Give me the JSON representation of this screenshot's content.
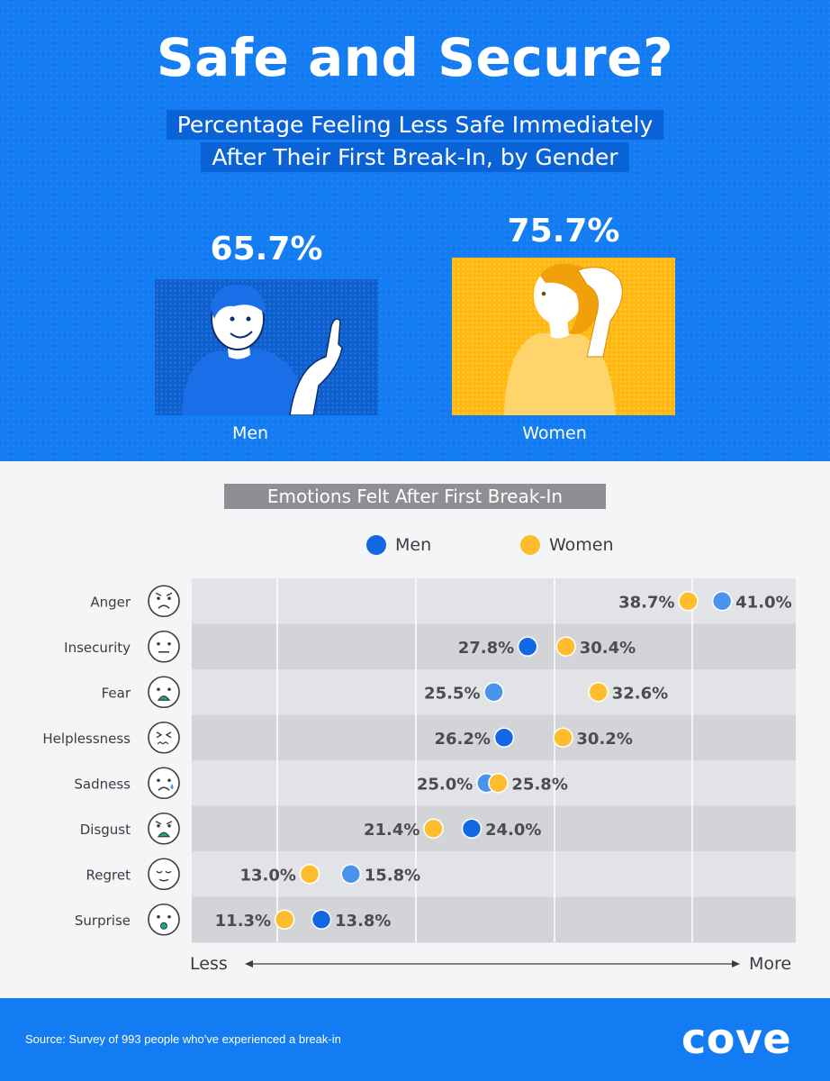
{
  "header": {
    "title": "Safe and Secure?",
    "subtitle_line1": "Percentage Feeling Less Safe Immediately",
    "subtitle_line2": "After Their First Break-In, by Gender"
  },
  "gender_stats": {
    "men": {
      "label": "Men",
      "value": "65.7%"
    },
    "women": {
      "label": "Women",
      "value": "75.7%"
    }
  },
  "colors": {
    "brand_blue": "#137cf2",
    "men_dark": "#1268e3",
    "men_light": "#4a93ec",
    "women": "#ffbd2e"
  },
  "chart_data": {
    "type": "dot",
    "title": "Emotions Felt After First Break-In",
    "categories": [
      "Anger",
      "Insecurity",
      "Fear",
      "Helplessness",
      "Sadness",
      "Disgust",
      "Regret",
      "Surprise"
    ],
    "series": [
      {
        "name": "Men",
        "values": [
          41.0,
          27.8,
          25.5,
          26.2,
          25.0,
          24.0,
          15.8,
          13.8
        ]
      },
      {
        "name": "Women",
        "values": [
          38.7,
          30.4,
          32.6,
          30.2,
          25.8,
          21.4,
          13.0,
          11.3
        ]
      }
    ],
    "category_icons": [
      "angry-face-icon",
      "neutral-face-icon",
      "fearful-face-icon",
      "tired-face-icon",
      "sad-tear-face-icon",
      "disgusted-face-icon",
      "regret-face-icon",
      "surprised-face-icon"
    ],
    "x_axis": {
      "min_label": "Less",
      "max_label": "More"
    },
    "xlim": [
      5,
      46
    ],
    "grid": true,
    "legend": "top-center",
    "value_suffix": "%"
  },
  "footer": {
    "source": "Source: Survey of 993 people who've experienced a break-in",
    "brand": "cove"
  }
}
